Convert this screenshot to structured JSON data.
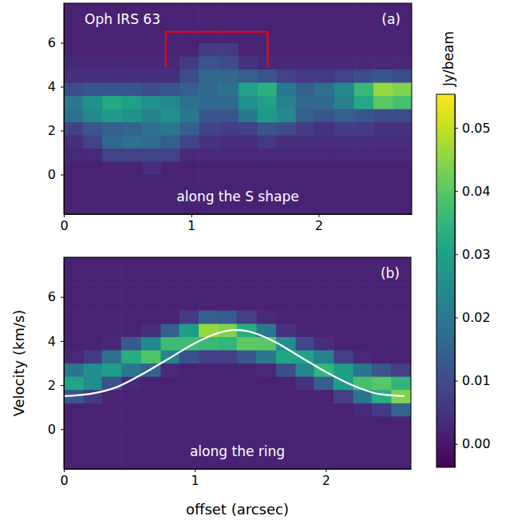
{
  "chart_data": [
    {
      "type": "heatmap",
      "annotation": "Oph IRS 63",
      "panel_label": "(a)",
      "title": "along the S shape",
      "xlim": [
        0,
        2.73
      ],
      "ylim": [
        -1.8,
        7.8
      ],
      "xticks": [
        0,
        1,
        2
      ],
      "yticks": [
        0,
        2,
        4,
        6
      ],
      "x_edges": [
        0,
        0.15,
        0.3,
        0.46,
        0.61,
        0.76,
        0.91,
        1.06,
        1.21,
        1.37,
        1.52,
        1.67,
        1.82,
        1.97,
        2.12,
        2.28,
        2.43,
        2.58,
        2.73
      ],
      "y_edges": [
        -1.8,
        -1.2,
        -0.6,
        0,
        0.6,
        1.2,
        1.8,
        2.4,
        3,
        3.6,
        4.2,
        4.8,
        5.4,
        6,
        6.6,
        7.2,
        7.8
      ],
      "z": [
        [
          0.002,
          0.002,
          0.002,
          0.002,
          0.002,
          0.002,
          0.002,
          0.002,
          0.002,
          0.002,
          0.002,
          0.002,
          0.002,
          0.002,
          0.002,
          0.002,
          0.002,
          0.002
        ],
        [
          0.002,
          0.002,
          0.002,
          0.002,
          0.002,
          0.002,
          0.002,
          0.002,
          0.002,
          0.002,
          0.002,
          0.002,
          0.002,
          0.002,
          0.002,
          0.002,
          0.002,
          0.002
        ],
        [
          0.002,
          0.002,
          0.002,
          0.002,
          0.002,
          0.002,
          0.002,
          0.002,
          0.002,
          0.002,
          0.002,
          0.002,
          0.002,
          0.002,
          0.002,
          0.002,
          0.002,
          0.002
        ],
        [
          0.002,
          0.002,
          0.002,
          0.002,
          0.004,
          0.002,
          0.002,
          0.002,
          0.002,
          0.002,
          0.002,
          0.002,
          0.002,
          0.002,
          0.002,
          0.002,
          0.002,
          0.002
        ],
        [
          0.003,
          0.003,
          0.008,
          0.008,
          0.008,
          0.008,
          0.003,
          0.003,
          0.003,
          0.003,
          0.003,
          0.003,
          0.003,
          0.003,
          0.003,
          0.003,
          0.003,
          0.003
        ],
        [
          0.004,
          0.008,
          0.016,
          0.018,
          0.017,
          0.014,
          0.008,
          0.005,
          0.004,
          0.004,
          0.006,
          0.004,
          0.004,
          0.004,
          0.004,
          0.004,
          0.004,
          0.004
        ],
        [
          0.008,
          0.012,
          0.014,
          0.015,
          0.018,
          0.02,
          0.014,
          0.008,
          0.007,
          0.008,
          0.012,
          0.01,
          0.006,
          0.005,
          0.006,
          0.006,
          0.005,
          0.005
        ],
        [
          0.018,
          0.024,
          0.028,
          0.026,
          0.022,
          0.026,
          0.02,
          0.012,
          0.012,
          0.02,
          0.028,
          0.024,
          0.014,
          0.012,
          0.014,
          0.012,
          0.01,
          0.01
        ],
        [
          0.02,
          0.026,
          0.032,
          0.03,
          0.026,
          0.024,
          0.018,
          0.016,
          0.016,
          0.026,
          0.03,
          0.022,
          0.016,
          0.016,
          0.022,
          0.032,
          0.04,
          0.038
        ],
        [
          0.01,
          0.012,
          0.012,
          0.012,
          0.01,
          0.012,
          0.014,
          0.016,
          0.018,
          0.03,
          0.034,
          0.02,
          0.014,
          0.018,
          0.024,
          0.036,
          0.046,
          0.044
        ],
        [
          0.004,
          0.004,
          0.004,
          0.004,
          0.004,
          0.004,
          0.01,
          0.016,
          0.016,
          0.014,
          0.012,
          0.008,
          0.006,
          0.006,
          0.008,
          0.01,
          0.012,
          0.01
        ],
        [
          0.003,
          0.003,
          0.003,
          0.003,
          0.003,
          0.003,
          0.006,
          0.012,
          0.01,
          0.005,
          0.003,
          0.003,
          0.003,
          0.003,
          0.003,
          0.003,
          0.003,
          0.003
        ],
        [
          0.002,
          0.002,
          0.002,
          0.002,
          0.002,
          0.002,
          0.002,
          0.006,
          0.006,
          0.002,
          0.002,
          0.002,
          0.002,
          0.002,
          0.002,
          0.002,
          0.002,
          0.002
        ],
        [
          0.002,
          0.002,
          0.002,
          0.002,
          0.002,
          0.002,
          0.002,
          0.002,
          0.002,
          0.002,
          0.002,
          0.002,
          0.002,
          0.002,
          0.002,
          0.002,
          0.002,
          0.002
        ],
        [
          0.002,
          0.002,
          0.002,
          0.002,
          0.002,
          0.002,
          0.002,
          0.002,
          0.002,
          0.002,
          0.002,
          0.002,
          0.002,
          0.002,
          0.002,
          0.002,
          0.002,
          0.002
        ],
        [
          0.002,
          0.002,
          0.002,
          0.002,
          0.002,
          0.002,
          0.002,
          0.002,
          0.002,
          0.002,
          0.002,
          0.002,
          0.002,
          0.002,
          0.002,
          0.002,
          0.002,
          0.002
        ]
      ],
      "bracket": {
        "x": [
          0.8,
          1.6
        ],
        "y": [
          4.9,
          6.5
        ],
        "color": "red"
      }
    },
    {
      "type": "heatmap",
      "panel_label": "(b)",
      "title": "along the ring",
      "xlabel": "offset (arcsec)",
      "ylabel": "Velocity (km/s)",
      "xlim": [
        0,
        2.65
      ],
      "ylim": [
        -1.8,
        7.8
      ],
      "xticks": [
        0,
        1,
        2
      ],
      "yticks": [
        0,
        2,
        4,
        6
      ],
      "x_edges": [
        0,
        0.15,
        0.29,
        0.44,
        0.59,
        0.74,
        0.88,
        1.03,
        1.18,
        1.32,
        1.47,
        1.62,
        1.77,
        1.91,
        2.06,
        2.21,
        2.35,
        2.5,
        2.65
      ],
      "y_edges": [
        -1.8,
        -1.2,
        -0.6,
        0,
        0.6,
        1.2,
        1.8,
        2.4,
        3,
        3.6,
        4.2,
        4.8,
        5.4,
        6,
        6.6,
        7.2,
        7.8
      ],
      "z": [
        [
          0.002,
          0.002,
          0.002,
          0.002,
          0.002,
          0.002,
          0.002,
          0.002,
          0.002,
          0.002,
          0.002,
          0.002,
          0.002,
          0.002,
          0.002,
          0.002,
          0.002,
          0.002
        ],
        [
          0.002,
          0.002,
          0.002,
          0.002,
          0.002,
          0.002,
          0.002,
          0.002,
          0.002,
          0.002,
          0.002,
          0.002,
          0.002,
          0.002,
          0.002,
          0.002,
          0.002,
          0.002
        ],
        [
          0.002,
          0.002,
          0.002,
          0.002,
          0.002,
          0.002,
          0.002,
          0.002,
          0.002,
          0.002,
          0.002,
          0.002,
          0.002,
          0.002,
          0.002,
          0.002,
          0.002,
          0.002
        ],
        [
          0.002,
          0.002,
          0.002,
          0.002,
          0.002,
          0.002,
          0.002,
          0.002,
          0.002,
          0.002,
          0.002,
          0.002,
          0.002,
          0.002,
          0.002,
          0.002,
          0.002,
          0.002
        ],
        [
          0.002,
          0.002,
          0.002,
          0.002,
          0.002,
          0.002,
          0.002,
          0.002,
          0.002,
          0.002,
          0.002,
          0.002,
          0.002,
          0.002,
          0.002,
          0.003,
          0.006,
          0.015
        ],
        [
          0.012,
          0.006,
          0.002,
          0.002,
          0.002,
          0.002,
          0.002,
          0.002,
          0.002,
          0.002,
          0.002,
          0.002,
          0.002,
          0.002,
          0.007,
          0.019,
          0.033,
          0.044
        ],
        [
          0.031,
          0.025,
          0.011,
          0.003,
          0.002,
          0.002,
          0.002,
          0.002,
          0.002,
          0.002,
          0.002,
          0.002,
          0.005,
          0.014,
          0.029,
          0.038,
          0.04,
          0.035
        ],
        [
          0.019,
          0.025,
          0.029,
          0.02,
          0.015,
          0.003,
          0.002,
          0.002,
          0.002,
          0.002,
          0.003,
          0.01,
          0.023,
          0.035,
          0.029,
          0.019,
          0.012,
          0.007
        ],
        [
          0.003,
          0.006,
          0.018,
          0.033,
          0.039,
          0.023,
          0.011,
          0.007,
          0.007,
          0.012,
          0.02,
          0.031,
          0.03,
          0.022,
          0.007,
          0.003,
          0.002,
          0.002
        ],
        [
          0.002,
          0.002,
          0.003,
          0.013,
          0.024,
          0.037,
          0.037,
          0.036,
          0.035,
          0.041,
          0.04,
          0.025,
          0.009,
          0.004,
          0.002,
          0.002,
          0.002,
          0.002
        ],
        [
          0.002,
          0.002,
          0.002,
          0.002,
          0.004,
          0.014,
          0.029,
          0.046,
          0.044,
          0.033,
          0.02,
          0.005,
          0.002,
          0.002,
          0.002,
          0.002,
          0.002,
          0.002
        ],
        [
          0.002,
          0.002,
          0.002,
          0.002,
          0.002,
          0.002,
          0.006,
          0.014,
          0.013,
          0.007,
          0.003,
          0.002,
          0.002,
          0.002,
          0.002,
          0.002,
          0.002,
          0.002
        ],
        [
          0.002,
          0.002,
          0.002,
          0.002,
          0.002,
          0.002,
          0.002,
          0.002,
          0.002,
          0.002,
          0.002,
          0.002,
          0.002,
          0.002,
          0.002,
          0.002,
          0.002,
          0.002
        ],
        [
          0.002,
          0.002,
          0.002,
          0.002,
          0.002,
          0.002,
          0.002,
          0.002,
          0.002,
          0.002,
          0.002,
          0.002,
          0.002,
          0.002,
          0.002,
          0.002,
          0.002,
          0.002
        ],
        [
          0.002,
          0.002,
          0.002,
          0.002,
          0.002,
          0.002,
          0.002,
          0.002,
          0.002,
          0.002,
          0.002,
          0.002,
          0.002,
          0.002,
          0.002,
          0.002,
          0.002,
          0.002
        ],
        [
          0.002,
          0.002,
          0.002,
          0.002,
          0.002,
          0.002,
          0.002,
          0.002,
          0.002,
          0.002,
          0.002,
          0.002,
          0.002,
          0.002,
          0.002,
          0.002,
          0.002,
          0.002
        ]
      ],
      "curve": {
        "x": [
          0,
          0.2,
          0.4,
          0.6,
          0.8,
          1.0,
          1.2,
          1.3,
          1.4,
          1.6,
          1.8,
          2.0,
          2.2,
          2.4,
          2.6
        ],
        "y": [
          1.5,
          1.6,
          1.9,
          2.5,
          3.2,
          3.9,
          4.4,
          4.5,
          4.45,
          4.0,
          3.3,
          2.6,
          2.0,
          1.6,
          1.5
        ],
        "color": "white"
      }
    }
  ],
  "colorbar": {
    "label": "Jy/beam",
    "color": "viridis",
    "lim": [
      -0.0037,
      0.0553
    ],
    "ticks": [
      {
        "value": 0,
        "label": "0.00"
      },
      {
        "value": 0.01,
        "label": "0.01"
      },
      {
        "value": 0.02,
        "label": "0.02"
      },
      {
        "value": 0.03,
        "label": "0.03"
      },
      {
        "value": 0.04,
        "label": "0.04"
      },
      {
        "value": 0.05,
        "label": "0.05"
      }
    ]
  }
}
